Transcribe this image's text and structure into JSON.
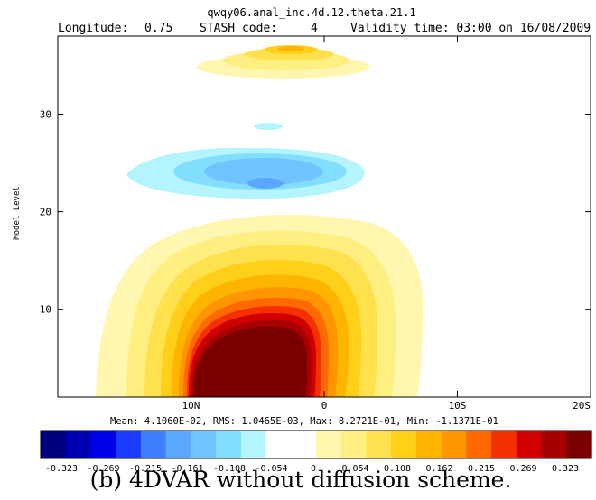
{
  "chart_data": {
    "type": "heatmap",
    "title": "qwqy06.anal_inc.4d.12.theta.21.1",
    "header": {
      "longitude_label": "Longitude:",
      "longitude_value": "0.75",
      "stash_label": "STASH code:",
      "stash_value": "4",
      "validity": "Validity time: 03:00 on 16/08/2009"
    },
    "xlabel": "",
    "ylabel": "Model Level",
    "x_ticks": [
      {
        "label": "10N",
        "value": 10
      },
      {
        "label": "0",
        "value": 0
      },
      {
        "label": "10S",
        "value": -10
      },
      {
        "label": "20S",
        "value": -20
      }
    ],
    "y_ticks": [
      10,
      20,
      30
    ],
    "xlim": [
      20,
      -20
    ],
    "ylim": [
      1,
      38
    ],
    "stats": "Mean:  4.1060E-02, RMS:  1.0465E-03, Max:  8.2721E-01, Min: -1.1371E-01",
    "colorbar": {
      "colors": [
        "#00007f",
        "#0000b3",
        "#0000e6",
        "#1a3cff",
        "#3f7fff",
        "#5ba6ff",
        "#70c4ff",
        "#82deff",
        "#b3f4ff",
        "#ffffff",
        "#ffffff",
        "#fff7b0",
        "#ffef80",
        "#ffe14d",
        "#ffcf1a",
        "#ffb400",
        "#ff9500",
        "#ff6a00",
        "#f53000",
        "#d10000",
        "#a80000",
        "#7a0000"
      ],
      "labels": [
        "-0.323",
        "-0.269",
        "-0.215",
        "-0.161",
        "-0.108",
        "-0.054",
        "0",
        "0.054",
        "0.108",
        "0.162",
        "0.215",
        "0.269",
        "0.323"
      ]
    },
    "features": [
      {
        "description": "strong positive increment",
        "x_range": [
          8,
          -3
        ],
        "level_range": [
          1,
          20
        ],
        "peak": "> 0.323"
      },
      {
        "description": "weak positive increment",
        "x_range": [
          4,
          -5
        ],
        "level_range": [
          35,
          38
        ]
      },
      {
        "description": "negative increment",
        "x_range": [
          12,
          -4
        ],
        "level_range": [
          20,
          27
        ]
      },
      {
        "description": "weak negative increment",
        "x_range": [
          1,
          -2
        ],
        "level_range": [
          28.7,
          29.3
        ]
      }
    ],
    "grid": false,
    "legend": "colorbar-bottom"
  },
  "caption": "(b) 4DVAR without diffusion scheme."
}
